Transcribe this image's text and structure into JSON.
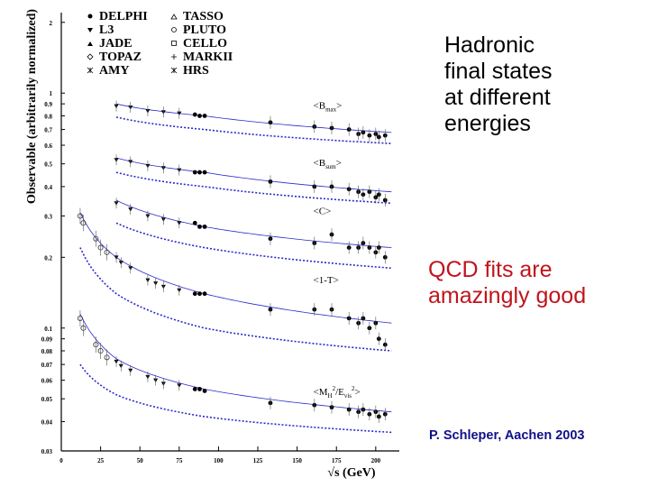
{
  "side_text": {
    "title": "Hadronic\nfinal states\nat different\nenergies",
    "claim": "QCD fits are\namazingly good",
    "credit": "P. Schleper, Aachen 2003"
  },
  "colors": {
    "fit_line": "#2a2acc",
    "claim_text": "#c0141c",
    "credit_text": "#10108a"
  },
  "chart_data": {
    "type": "scatter",
    "ylabel": "Observable (arbitrarily normalized)",
    "xlabel": "√s (GeV)",
    "xlim": [
      0,
      215
    ],
    "ylim": [
      0.03,
      2.2
    ],
    "yscale": "log",
    "x_ticks": [
      "0",
      "25",
      "50",
      "75",
      "100",
      "125",
      "150",
      "175",
      "200"
    ],
    "y_ticks": [
      "2",
      "1",
      "0.9",
      "0.8",
      "0.7",
      "0.6",
      "0.5",
      "0.4",
      "0.3",
      "0.2",
      "0.1",
      "0.09",
      "0.08",
      "0.07",
      "0.06",
      "0.05",
      "0.04",
      "0.03"
    ],
    "legend": [
      {
        "name": "DELPHI",
        "marker": "circle"
      },
      {
        "name": "TASSO",
        "marker": "open-triangle"
      },
      {
        "name": "L3",
        "marker": "triangle-down"
      },
      {
        "name": "PLUTO",
        "marker": "open-circle"
      },
      {
        "name": "JADE",
        "marker": "triangle-up"
      },
      {
        "name": "CELLO",
        "marker": "open-square"
      },
      {
        "name": "TOPAZ",
        "marker": "open-diamond"
      },
      {
        "name": "MARKII",
        "marker": "open-cross"
      },
      {
        "name": "AMY",
        "marker": "star"
      },
      {
        "name": "HRS",
        "marker": "open-star"
      }
    ],
    "observables": [
      {
        "label": "<B_max>",
        "label_main": "<B",
        "label_sub": "max",
        "label_end": ">",
        "label_at": [
          80,
          0.86
        ],
        "points": [
          [
            35,
            0.88
          ],
          [
            44,
            0.87
          ],
          [
            55,
            0.84
          ],
          [
            65,
            0.83
          ],
          [
            75,
            0.82
          ],
          [
            85,
            0.81
          ],
          [
            88,
            0.8
          ],
          [
            91.2,
            0.8
          ],
          [
            133,
            0.75
          ],
          [
            161,
            0.72
          ],
          [
            172,
            0.71
          ],
          [
            183,
            0.7
          ],
          [
            189,
            0.67
          ],
          [
            192,
            0.68
          ],
          [
            196,
            0.66
          ],
          [
            200,
            0.67
          ],
          [
            202,
            0.65
          ],
          [
            206,
            0.66
          ]
        ],
        "fit": [
          [
            35,
            0.9
          ],
          [
            91,
            0.8
          ],
          [
            210,
            0.68
          ]
        ],
        "lower": [
          [
            35,
            0.79
          ],
          [
            91,
            0.7
          ],
          [
            210,
            0.61
          ]
        ]
      },
      {
        "label": "<B_sum>",
        "label_main": "<B",
        "label_sub": "sum",
        "label_end": ">",
        "label_at": [
          80,
          0.49
        ],
        "points": [
          [
            35,
            0.52
          ],
          [
            44,
            0.51
          ],
          [
            55,
            0.49
          ],
          [
            65,
            0.48
          ],
          [
            75,
            0.47
          ],
          [
            85,
            0.46
          ],
          [
            88,
            0.46
          ],
          [
            91.2,
            0.46
          ],
          [
            133,
            0.42
          ],
          [
            161,
            0.4
          ],
          [
            172,
            0.4
          ],
          [
            183,
            0.39
          ],
          [
            189,
            0.38
          ],
          [
            192,
            0.37
          ],
          [
            196,
            0.38
          ],
          [
            200,
            0.36
          ],
          [
            202,
            0.37
          ],
          [
            206,
            0.35
          ]
        ],
        "fit": [
          [
            35,
            0.53
          ],
          [
            91,
            0.46
          ],
          [
            210,
            0.38
          ]
        ],
        "lower": [
          [
            35,
            0.46
          ],
          [
            91,
            0.4
          ],
          [
            210,
            0.34
          ]
        ]
      },
      {
        "label": "<C>",
        "label_main": "<C>",
        "label_sub": "",
        "label_end": "",
        "label_at": [
          80,
          0.305
        ],
        "points": [
          [
            35,
            0.34
          ],
          [
            44,
            0.32
          ],
          [
            55,
            0.3
          ],
          [
            65,
            0.29
          ],
          [
            75,
            0.28
          ],
          [
            85,
            0.28
          ],
          [
            88,
            0.27
          ],
          [
            91.2,
            0.27
          ],
          [
            133,
            0.24
          ],
          [
            161,
            0.23
          ],
          [
            172,
            0.25
          ],
          [
            183,
            0.22
          ],
          [
            189,
            0.22
          ],
          [
            192,
            0.23
          ],
          [
            196,
            0.22
          ],
          [
            200,
            0.21
          ],
          [
            202,
            0.22
          ],
          [
            206,
            0.2
          ]
        ],
        "fit": [
          [
            35,
            0.35
          ],
          [
            91,
            0.27
          ],
          [
            210,
            0.22
          ]
        ],
        "lower": [
          [
            35,
            0.28
          ],
          [
            91,
            0.22
          ],
          [
            210,
            0.18
          ]
        ]
      },
      {
        "label": "<1-T>",
        "label_main": "<1-T>",
        "label_sub": "",
        "label_end": "",
        "label_at": [
          80,
          0.155
        ],
        "points": [
          [
            12,
            0.3
          ],
          [
            14,
            0.28
          ],
          [
            22,
            0.24
          ],
          [
            25,
            0.22
          ],
          [
            29,
            0.21
          ],
          [
            35,
            0.2
          ],
          [
            38,
            0.19
          ],
          [
            44,
            0.18
          ],
          [
            55,
            0.16
          ],
          [
            60,
            0.155
          ],
          [
            65,
            0.15
          ],
          [
            75,
            0.145
          ],
          [
            85,
            0.14
          ],
          [
            88,
            0.14
          ],
          [
            91.2,
            0.14
          ],
          [
            133,
            0.12
          ],
          [
            161,
            0.12
          ],
          [
            172,
            0.12
          ],
          [
            183,
            0.11
          ],
          [
            189,
            0.105
          ],
          [
            192,
            0.11
          ],
          [
            196,
            0.1
          ],
          [
            200,
            0.105
          ],
          [
            202,
            0.09
          ],
          [
            206,
            0.085
          ]
        ],
        "fit": [
          [
            12,
            0.31
          ],
          [
            35,
            0.2
          ],
          [
            91,
            0.14
          ],
          [
            210,
            0.105
          ]
        ],
        "lower": [
          [
            12,
            0.22
          ],
          [
            35,
            0.14
          ],
          [
            91,
            0.1
          ],
          [
            210,
            0.08
          ]
        ]
      },
      {
        "label": "<M_H^2/E_vis^2>",
        "label_main": "<M",
        "label_sub": "H",
        "label_sup": "2",
        "label_mid": "/E",
        "label_sub2": "vis",
        "label_sup2": "2",
        "label_end": ">",
        "label_at": [
          80,
          0.052
        ],
        "points": [
          [
            12,
            0.11
          ],
          [
            14,
            0.1
          ],
          [
            22,
            0.085
          ],
          [
            25,
            0.08
          ],
          [
            29,
            0.075
          ],
          [
            35,
            0.072
          ],
          [
            38,
            0.069
          ],
          [
            44,
            0.066
          ],
          [
            55,
            0.062
          ],
          [
            60,
            0.06
          ],
          [
            65,
            0.058
          ],
          [
            75,
            0.057
          ],
          [
            85,
            0.055
          ],
          [
            88,
            0.055
          ],
          [
            91.2,
            0.054
          ],
          [
            133,
            0.048
          ],
          [
            161,
            0.047
          ],
          [
            172,
            0.046
          ],
          [
            183,
            0.045
          ],
          [
            189,
            0.044
          ],
          [
            192,
            0.045
          ],
          [
            196,
            0.043
          ],
          [
            200,
            0.044
          ],
          [
            202,
            0.042
          ],
          [
            206,
            0.043
          ]
        ],
        "fit": [
          [
            12,
            0.115
          ],
          [
            35,
            0.074
          ],
          [
            91,
            0.055
          ],
          [
            210,
            0.044
          ]
        ],
        "lower": [
          [
            12,
            0.07
          ],
          [
            35,
            0.052
          ],
          [
            91,
            0.042
          ],
          [
            210,
            0.036
          ]
        ]
      }
    ]
  }
}
